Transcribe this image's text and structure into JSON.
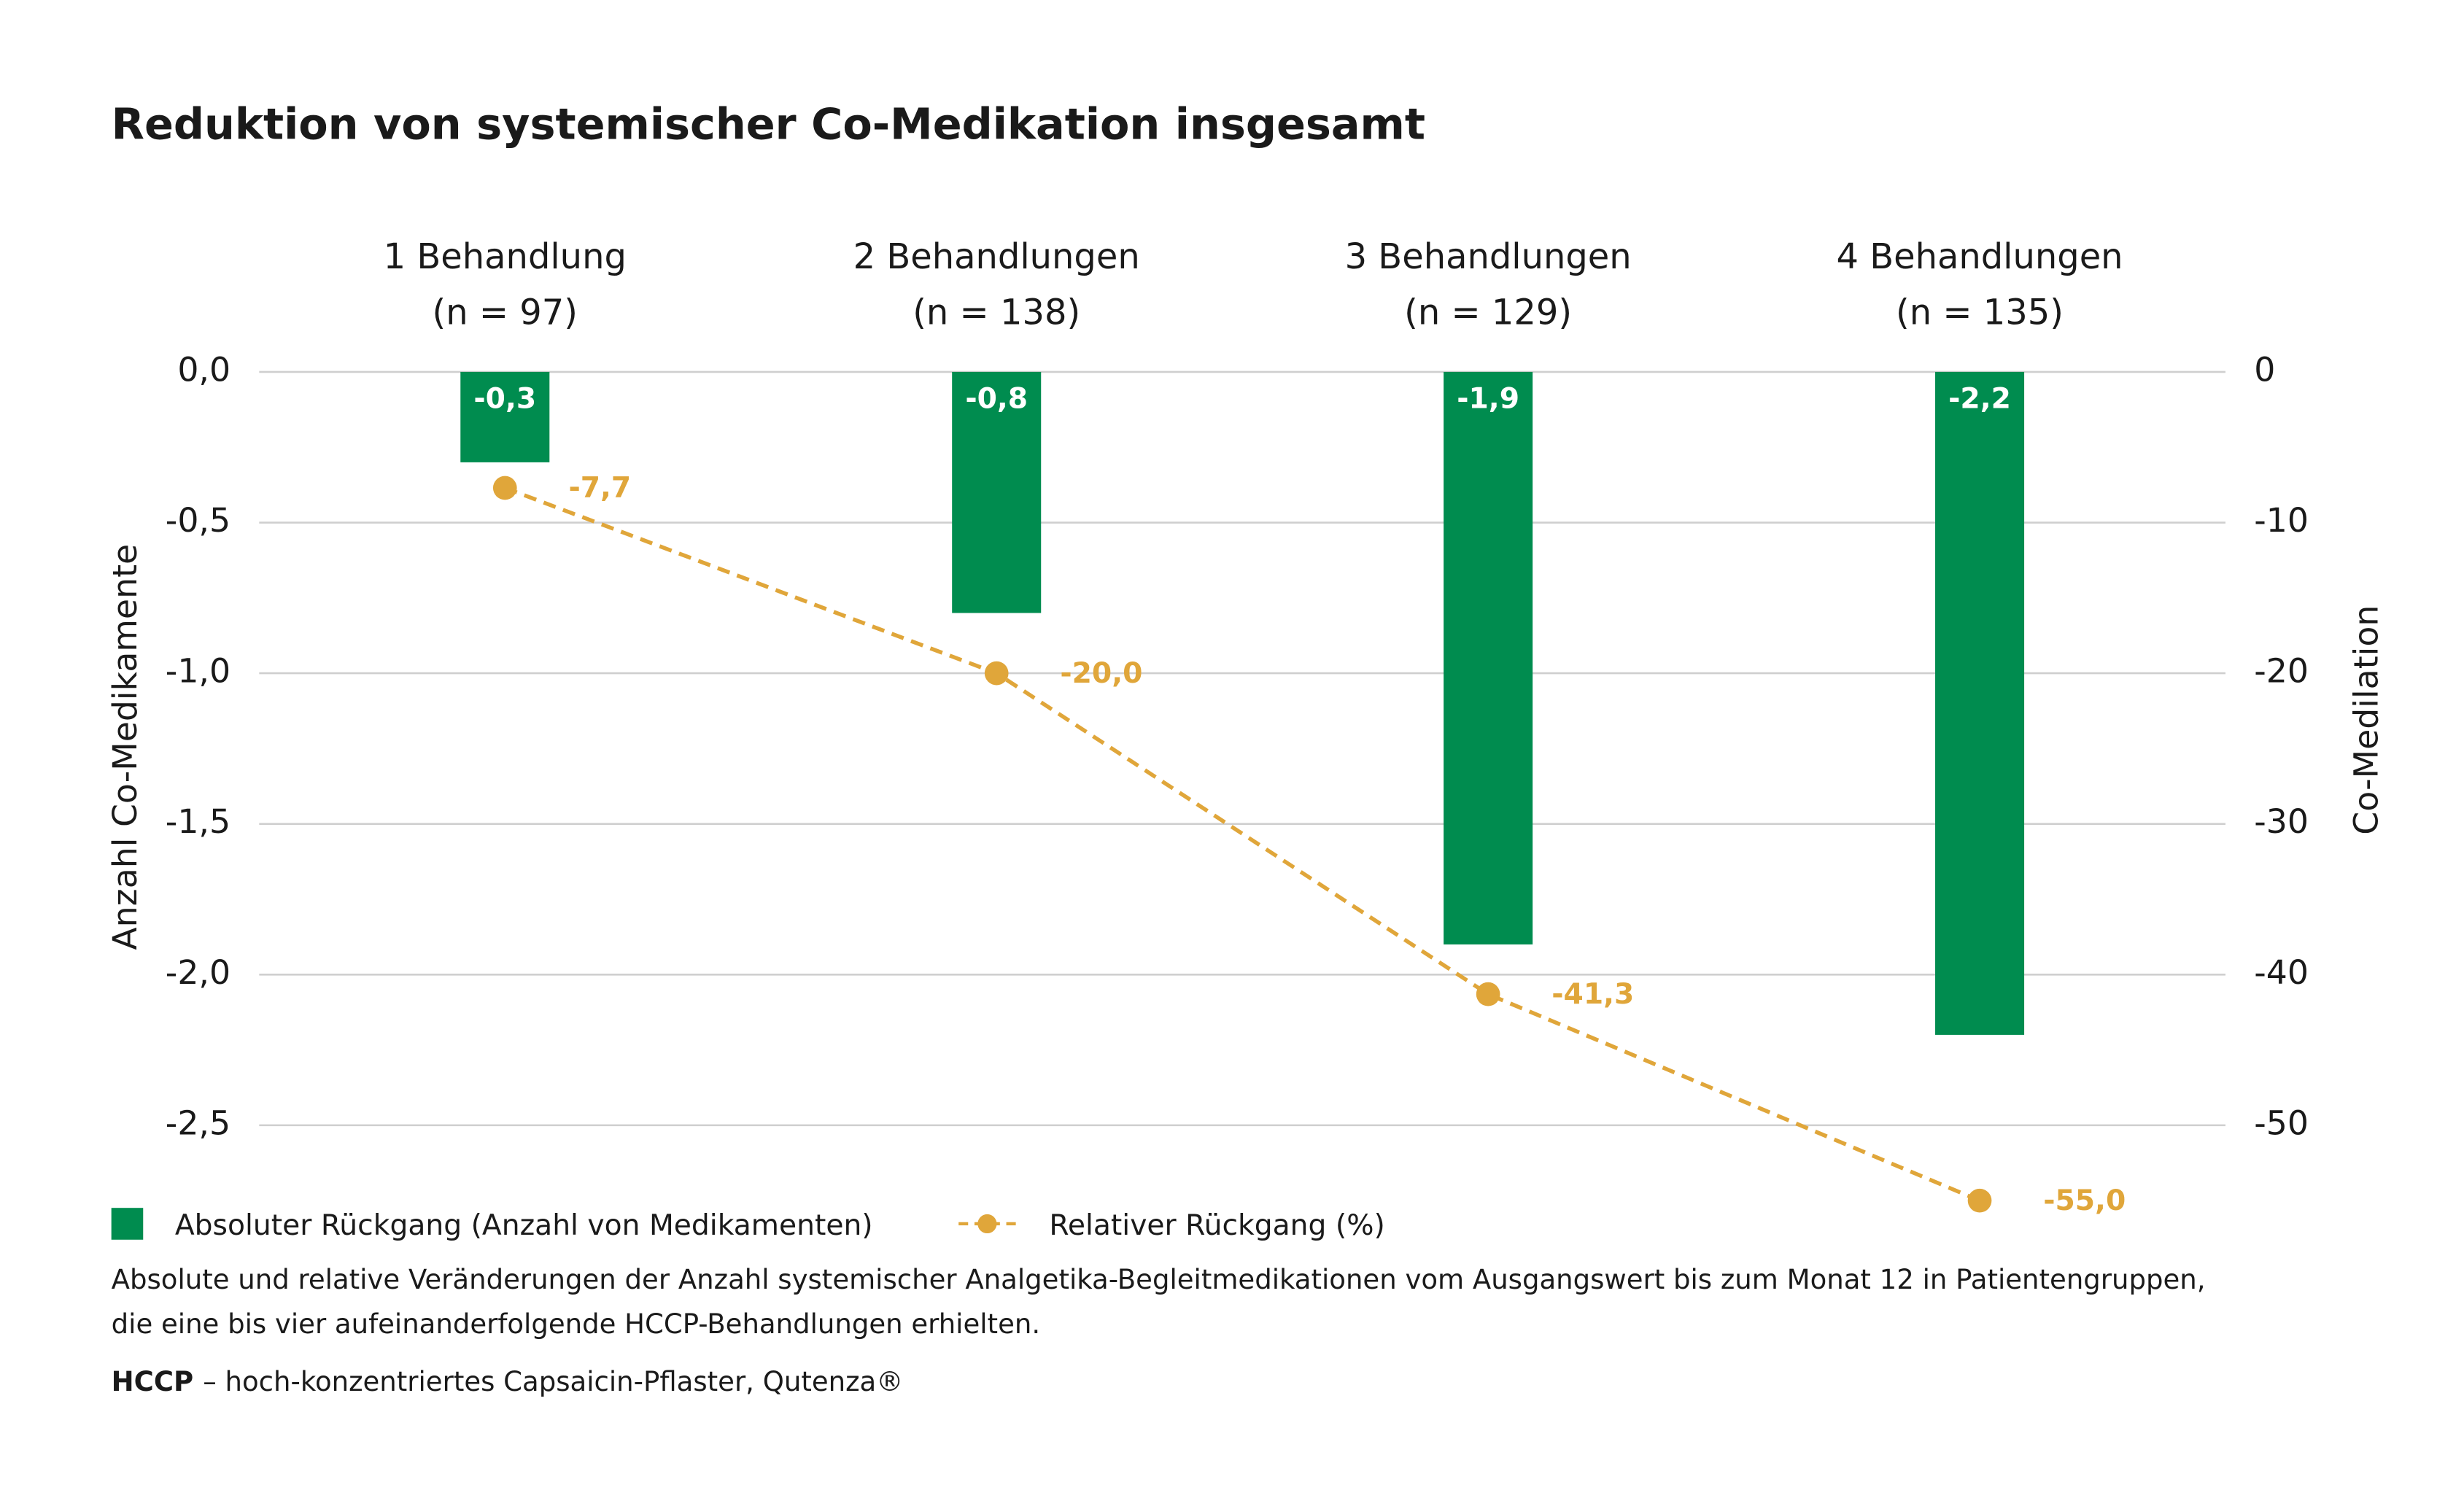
{
  "chart_data": {
    "type": "bar",
    "title": "Reduktion von systemischer Co-Medikation insgesamt",
    "categories": [
      "1 Behandlung",
      "2 Behandlungen",
      "3 Behandlungen",
      "4 Behandlungen"
    ],
    "category_notes": [
      "(n = 97)",
      "(n = 138)",
      "(n = 129)",
      "(n = 135)"
    ],
    "ylabel": "Anzahl Co-Medikamente",
    "y2label": "Co-Medilation",
    "ylim": [
      0,
      -2.5
    ],
    "yticks": [
      {
        "value": 0,
        "label": "0,0"
      },
      {
        "value": -0.5,
        "label": "-0,5"
      },
      {
        "value": -1,
        "label": "-1,0"
      },
      {
        "value": -1.5,
        "label": "-1,5"
      },
      {
        "value": -2,
        "label": "-2,0"
      },
      {
        "value": -2.5,
        "label": "-2,5"
      }
    ],
    "y2lim": [
      0,
      -50
    ],
    "y2ticks": [
      0,
      -10,
      -20,
      -30,
      -40,
      -50
    ],
    "grid": true,
    "series": [
      {
        "name": "Absoluter Rückgang (Anzahl von Medikamenten)",
        "type": "bar",
        "color": "#008c4f",
        "values": [
          -0.3,
          -0.8,
          -1.9,
          -2.2
        ],
        "value_labels": [
          "-0,3",
          "-0,8",
          "-1,9",
          "-2,2"
        ]
      },
      {
        "name": "Relativer Rückgang (%)",
        "type": "line",
        "axis": "y2",
        "color": "#e0a63a",
        "values": [
          -7.7,
          -20.0,
          -41.3,
          -55.0
        ],
        "value_labels": [
          "-7,7",
          "-20,0",
          "-41,3",
          "-55,0"
        ]
      }
    ],
    "caption": [
      "Absolute und relative Veränderungen der Anzahl systemischer Analgetika-Begleitmedikationen vom Ausgangswert bis zum Monat 12 in Patientengruppen,",
      "die eine bis vier aufeinanderfolgende HCCP-Behandlungen erhielten."
    ],
    "footnote": {
      "term": "HCCP",
      "text": "– hoch-konzentriertes Capsaicin-Pflaster, Qutenza®"
    }
  }
}
